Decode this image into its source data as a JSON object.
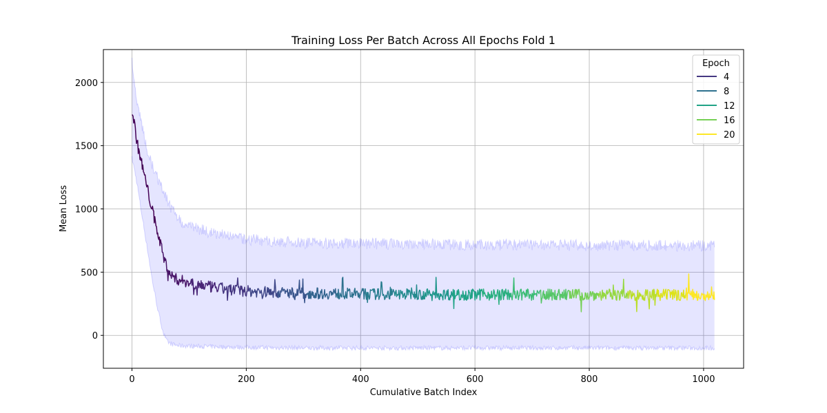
{
  "chart_data": {
    "type": "line",
    "title": "Training Loss Per Batch Across All Epochs Fold 1",
    "xlabel": "Cumulative Batch Index",
    "ylabel": "Mean Loss",
    "xlim": [
      -50,
      1070
    ],
    "ylim": [
      -260,
      2260
    ],
    "xticks": [
      0,
      200,
      400,
      600,
      800,
      1000
    ],
    "yticks": [
      0,
      500,
      1000,
      1500,
      2000
    ],
    "grid": true,
    "legend": {
      "title": "Epoch",
      "placement": "top-right",
      "entries": [
        "4",
        "8",
        "12",
        "16",
        "20"
      ]
    },
    "colors": {
      "band": "#0000ff",
      "epochs": [
        "#440154",
        "#481467",
        "#482576",
        "#453781",
        "#3f4788",
        "#39558c",
        "#32648e",
        "#2d718e",
        "#287d8e",
        "#238a8d",
        "#1f968b",
        "#20a386",
        "#29af7f",
        "#3cbc75",
        "#56c667",
        "#75d054",
        "#95d840",
        "#bade28",
        "#dde318",
        "#fde725"
      ],
      "legend": [
        "#453781",
        "#2d718e",
        "#20a386",
        "#75d054",
        "#fde725"
      ]
    },
    "batches_per_epoch": 51,
    "total_batches": 1020,
    "series": [
      {
        "name": "Mean Loss",
        "kind": "line",
        "x": [
          0,
          5,
          10,
          15,
          20,
          25,
          30,
          35,
          40,
          45,
          50,
          55,
          60,
          65,
          70,
          75,
          80,
          90,
          100,
          120,
          140,
          160,
          180,
          200,
          250,
          300,
          350,
          400,
          450,
          500,
          550,
          600,
          650,
          700,
          750,
          800,
          850,
          900,
          950,
          1000,
          1019
        ],
        "y": [
          1780,
          1650,
          1500,
          1400,
          1300,
          1200,
          1100,
          1000,
          900,
          820,
          720,
          620,
          560,
          500,
          470,
          450,
          440,
          430,
          420,
          400,
          380,
          370,
          360,
          350,
          340,
          335,
          330,
          328,
          326,
          325,
          324,
          323,
          323,
          322,
          322,
          321,
          321,
          320,
          320,
          320,
          320
        ],
        "noise_amplitude": 45
      },
      {
        "name": "Spread",
        "kind": "band",
        "x": [
          0,
          5,
          10,
          15,
          20,
          25,
          30,
          35,
          40,
          45,
          50,
          55,
          60,
          65,
          70,
          75,
          80,
          100,
          150,
          200,
          300,
          500,
          700,
          900,
          1019
        ],
        "upper": [
          2150,
          1980,
          1800,
          1720,
          1600,
          1500,
          1420,
          1360,
          1280,
          1240,
          1180,
          1130,
          1080,
          1040,
          1000,
          960,
          920,
          860,
          800,
          760,
          730,
          720,
          715,
          710,
          710
        ],
        "lower": [
          1400,
          1300,
          1170,
          1020,
          880,
          740,
          600,
          450,
          330,
          210,
          110,
          20,
          -40,
          -60,
          -70,
          -75,
          -80,
          -85,
          -90,
          -95,
          -100,
          -100,
          -100,
          -100,
          -100
        ],
        "noise_amplitude": 90
      }
    ]
  }
}
